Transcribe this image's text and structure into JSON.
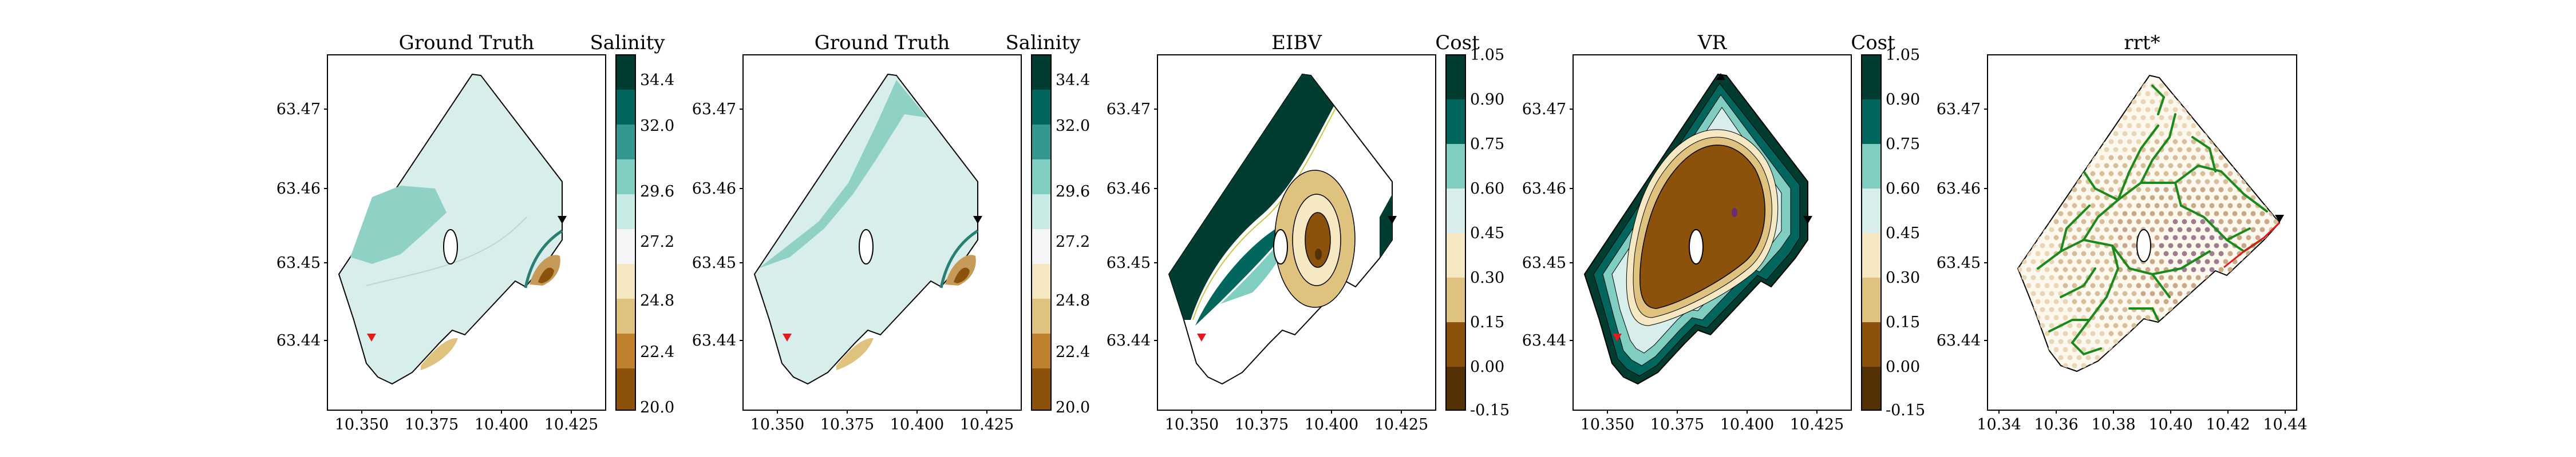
{
  "chart_data": [
    {
      "type": "contour",
      "title": "Ground Truth",
      "colorbar_label": "Salinity",
      "x_ticks": [
        "10.350",
        "10.375",
        "10.400",
        "10.425"
      ],
      "y_ticks": [
        "63.47",
        "63.46",
        "63.45",
        "63.44"
      ],
      "colorbar_ticks": [
        "34.4",
        "32.0",
        "29.6",
        "27.2",
        "24.8",
        "22.4",
        "20.0"
      ],
      "markers": [
        {
          "name": "start",
          "color": "#e31a1c",
          "x": 10.356,
          "y": 63.4405
        },
        {
          "name": "target",
          "color": "#000000",
          "x": 10.431,
          "y": 63.4555
        }
      ]
    },
    {
      "type": "contour",
      "title": "Ground Truth",
      "colorbar_label": "Salinity",
      "x_ticks": [
        "10.350",
        "10.375",
        "10.400",
        "10.425"
      ],
      "y_ticks": [
        "63.47",
        "63.46",
        "63.45",
        "63.44"
      ],
      "colorbar_ticks": [
        "34.4",
        "32.0",
        "29.6",
        "27.2",
        "24.8",
        "22.4",
        "20.0"
      ],
      "markers": [
        {
          "name": "start",
          "color": "#e31a1c",
          "x": 10.356,
          "y": 63.4405
        },
        {
          "name": "target",
          "color": "#000000",
          "x": 10.431,
          "y": 63.4555
        }
      ]
    },
    {
      "type": "contour",
      "title": "EIBV",
      "colorbar_label": "Cost",
      "x_ticks": [
        "10.350",
        "10.375",
        "10.400",
        "10.425"
      ],
      "y_ticks": [
        "63.47",
        "63.46",
        "63.45",
        "63.44"
      ],
      "colorbar_ticks": [
        "1.05",
        "0.90",
        "0.75",
        "0.60",
        "0.45",
        "0.30",
        "0.15",
        "0.00",
        "-0.15"
      ],
      "markers": [
        {
          "name": "start",
          "color": "#e31a1c",
          "x": 10.356,
          "y": 63.4405
        },
        {
          "name": "target",
          "color": "#000000",
          "x": 10.431,
          "y": 63.4555
        }
      ]
    },
    {
      "type": "contour",
      "title": "VR",
      "colorbar_label": "Cost",
      "x_ticks": [
        "10.350",
        "10.375",
        "10.400",
        "10.425"
      ],
      "y_ticks": [
        "63.47",
        "63.46",
        "63.45",
        "63.44"
      ],
      "colorbar_ticks": [
        "1.05",
        "0.90",
        "0.75",
        "0.60",
        "0.45",
        "0.30",
        "0.15",
        "0.00",
        "-0.15"
      ],
      "markers": [
        {
          "name": "start",
          "color": "#e31a1c",
          "x": 10.356,
          "y": 63.4405
        },
        {
          "name": "target",
          "color": "#000000",
          "x": 10.431,
          "y": 63.4555
        }
      ]
    },
    {
      "type": "scatter",
      "title": "rrt*",
      "x_ticks": [
        "10.34",
        "10.36",
        "10.38",
        "10.40",
        "10.42",
        "10.44"
      ],
      "y_ticks": [
        "63.47",
        "63.46",
        "63.45",
        "63.44"
      ],
      "markers": [
        {
          "name": "target",
          "color": "#000000",
          "x": 10.431,
          "y": 63.4555
        }
      ]
    }
  ]
}
